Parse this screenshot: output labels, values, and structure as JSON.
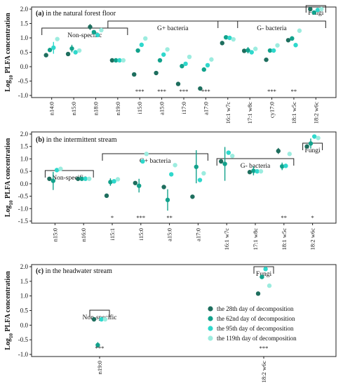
{
  "colors": [
    "#1e6e5e",
    "#12a28c",
    "#2fd8cc",
    "#9cecdf"
  ],
  "ylabel_prefix": "Log",
  "ylabel_sub": "10",
  "ylabel_suffix": " PLFA concentration",
  "legend": [
    "the 28th day of decomposition",
    "the 62nd day of decomposition",
    "the 95th day of decomposition",
    "the 119th day of decomposition"
  ],
  "chart_data": [
    {
      "type": "scatter",
      "panel_letter": "(a)",
      "title": " in the natural forest floor",
      "ylim": [
        -1.0,
        2.0
      ],
      "yticks": [
        "2.0",
        "1.5",
        "1.0",
        "0.5",
        "0.0",
        "-0.5",
        "-1.0"
      ],
      "categories": [
        "n14:0",
        "n15:0",
        "n18:0",
        "n19:0",
        "i15:0",
        "a15:0",
        "i17:0",
        "a17:0",
        "16:1 w7c",
        "17:1 w8c",
        "cy17:0",
        "18:1 w5c",
        "18:2 w6c"
      ],
      "series": [
        {
          "values": [
            0.4,
            0.44,
            1.38,
            0.22,
            -0.27,
            -0.22,
            -0.6,
            -0.76,
            0.82,
            0.55,
            0.24,
            0.92,
            2.0
          ]
        },
        {
          "values": [
            0.58,
            0.63,
            1.2,
            0.22,
            0.56,
            0.22,
            0.02,
            -0.1,
            1.02,
            0.57,
            0.56,
            0.98,
            1.88
          ]
        },
        {
          "values": [
            0.66,
            0.5,
            1.1,
            0.22,
            0.76,
            0.42,
            0.1,
            0.05,
            1.0,
            0.5,
            0.56,
            0.75,
            1.97
          ]
        },
        {
          "values": [
            0.96,
            0.56,
            1.27,
            0.22,
            0.98,
            0.6,
            0.34,
            0.25,
            0.95,
            0.62,
            0.74,
            1.25,
            2.0
          ]
        }
      ],
      "errors": [
        {
          "cat": 0,
          "series": 2,
          "low": 0.45,
          "high": 0.86
        },
        {
          "cat": 1,
          "series": 1,
          "low": 0.5,
          "high": 0.76
        },
        {
          "cat": 2,
          "series": 0,
          "low": 1.28,
          "high": 1.48
        },
        {
          "cat": 7,
          "series": 0,
          "low": -0.82,
          "high": -0.7
        },
        {
          "cat": 9,
          "series": 1,
          "low": 0.46,
          "high": 0.68
        },
        {
          "cat": 11,
          "series": 1,
          "low": 0.9,
          "high": 1.06
        }
      ],
      "significance": [
        {
          "cat": 4,
          "label": "***"
        },
        {
          "cat": 5,
          "label": "***"
        },
        {
          "cat": 6,
          "label": "***"
        },
        {
          "cat": 7,
          "label": "***"
        },
        {
          "cat": 10,
          "label": "***"
        },
        {
          "cat": 11,
          "label": "**"
        }
      ],
      "groups": [
        {
          "label": "Non-specific",
          "from": 0,
          "to": 3
        },
        {
          "label": "G+ bacteria",
          "from": 3,
          "to": 8
        },
        {
          "label": "G- bacteria",
          "from": 8,
          "to": 12
        },
        {
          "label": "Fungi",
          "from": 12,
          "to": 12
        }
      ]
    },
    {
      "type": "scatter",
      "panel_letter": "(b)",
      "title": " in the intermittent stream",
      "ylim": [
        -1.5,
        2.0
      ],
      "yticks": [
        "2.0",
        "1.5",
        "1.0",
        "0.5",
        "0.0",
        "-0.5",
        "-1.0",
        "-1.5"
      ],
      "categories": [
        "n15:0",
        "n16:0",
        "i15:1",
        "i15:0",
        "a15:0",
        "a17:0",
        "16:1 w7c",
        "17:1 w8c",
        "18:1 w5c",
        "18:2 w6c"
      ],
      "series": [
        {
          "values": [
            0.2,
            0.2,
            -0.48,
            0.03,
            -0.13,
            -0.52,
            0.9,
            0.47,
            1.32,
            1.5
          ]
        },
        {
          "values": [
            0.12,
            0.2,
            0.07,
            -0.08,
            -0.65,
            0.68,
            0.8,
            0.52,
            0.7,
            1.62
          ]
        },
        {
          "values": [
            0.55,
            0.2,
            0.1,
            0.9,
            0.38,
            0.15,
            1.25,
            0.5,
            0.72,
            1.9
          ]
        },
        {
          "values": [
            0.6,
            0.2,
            0.18,
            1.2,
            0.75,
            0.42,
            1.12,
            0.5,
            1.2,
            1.84
          ]
        }
      ],
      "errors": [
        {
          "cat": 0,
          "series": 1,
          "low": -0.25,
          "high": 0.48
        },
        {
          "cat": 2,
          "series": 1,
          "low": -0.08,
          "high": 0.22
        },
        {
          "cat": 3,
          "series": 1,
          "low": -0.35,
          "high": 0.2
        },
        {
          "cat": 4,
          "series": 1,
          "low": -1.08,
          "high": -0.22
        },
        {
          "cat": 5,
          "series": 1,
          "low": 0.02,
          "high": 1.35
        },
        {
          "cat": 6,
          "series": 1,
          "low": 0.12,
          "high": 1.48
        },
        {
          "cat": 7,
          "series": 1,
          "low": 0.34,
          "high": 0.7
        },
        {
          "cat": 8,
          "series": 0,
          "low": 1.2,
          "high": 1.44
        },
        {
          "cat": 8,
          "series": 1,
          "low": 0.55,
          "high": 0.85
        },
        {
          "cat": 9,
          "series": 1,
          "low": 1.42,
          "high": 1.82
        }
      ],
      "significance": [
        {
          "cat": 2,
          "label": "*"
        },
        {
          "cat": 3,
          "label": "***"
        },
        {
          "cat": 4,
          "label": "**"
        },
        {
          "cat": 8,
          "label": "**"
        },
        {
          "cat": 9,
          "label": "*"
        }
      ],
      "groups": [
        {
          "label": "Non-specific",
          "from": 0,
          "to": 1
        },
        {
          "label": "G+ bacteria",
          "from": 2,
          "to": 5
        },
        {
          "label": "G- bacteria",
          "from": 6,
          "to": 8
        },
        {
          "label": "Fungi",
          "from": 9,
          "to": 9
        }
      ]
    },
    {
      "type": "scatter",
      "panel_letter": "(c)",
      "title": " in the headwater stream",
      "ylim": [
        -1.0,
        2.0
      ],
      "yticks": [
        "2.0",
        "1.5",
        "1.0",
        "0.5",
        "0.0",
        "-0.5",
        "-1.0"
      ],
      "categories": [
        "n19:0",
        "18:2 w6c"
      ],
      "series": [
        {
          "values": [
            0.2,
            1.08
          ]
        },
        {
          "values": [
            -0.68,
            1.65
          ]
        },
        {
          "values": [
            0.2,
            1.92
          ]
        },
        {
          "values": [
            0.2,
            1.35
          ]
        }
      ],
      "errors": [
        {
          "cat": 0,
          "series": 1,
          "low": -0.76,
          "high": -0.58
        }
      ],
      "significance": [
        {
          "cat": 0,
          "label": "***"
        },
        {
          "cat": 1,
          "label": "***"
        }
      ],
      "groups": [
        {
          "label": "Non-specific",
          "from": 0,
          "to": 0
        },
        {
          "label": "Fungi",
          "from": 1,
          "to": 1
        }
      ]
    }
  ]
}
